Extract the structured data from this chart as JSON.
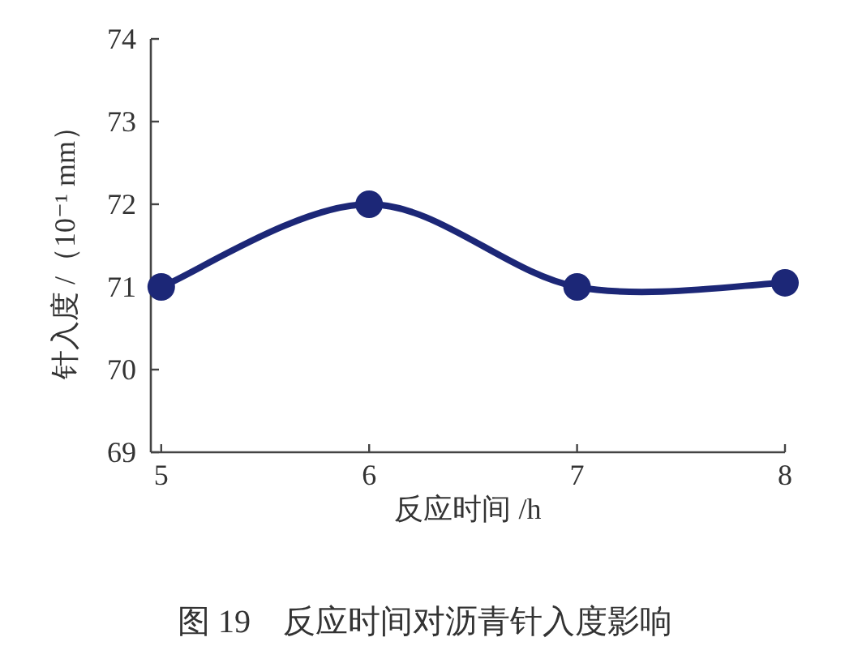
{
  "chart_data": {
    "type": "line",
    "xlabel": "反应时间 /h",
    "ylabel": "针入度 /（10⁻¹ mm）",
    "annotations": [
      "图 19　反应时间对沥青针入度影响"
    ],
    "x": [
      5,
      6,
      7,
      8
    ],
    "series": [
      {
        "color": "#1c2777",
        "values": [
          71.0,
          72.0,
          71.0,
          71.05
        ]
      }
    ],
    "xlim": [
      4.95,
      8
    ],
    "ylim": [
      69,
      74
    ],
    "xticks": [
      5,
      6,
      7,
      8
    ],
    "yticks": [
      69,
      70,
      71,
      72,
      73,
      74
    ],
    "marker": "circle",
    "line_style": "solid"
  }
}
